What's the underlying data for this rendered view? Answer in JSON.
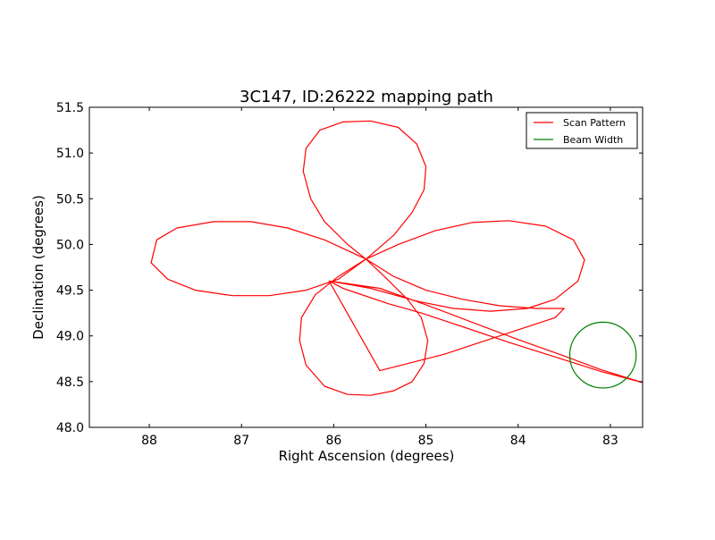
{
  "chart_data": {
    "type": "line",
    "title": "3C147, ID:26222 mapping path",
    "xlabel": "Right Ascension (degrees)",
    "ylabel": "Declination (degrees)",
    "xlim": [
      88.65,
      82.65
    ],
    "ylim": [
      48.0,
      51.5
    ],
    "x_axis_inverted": true,
    "xticks": [
      88,
      87,
      86,
      85,
      84,
      83
    ],
    "xtick_labels": [
      "88",
      "87",
      "86",
      "85",
      "84",
      "83"
    ],
    "yticks": [
      48.0,
      48.5,
      49.0,
      49.5,
      50.0,
      50.5,
      51.0,
      51.5
    ],
    "ytick_labels": [
      "48.0",
      "48.5",
      "49.0",
      "49.5",
      "50.0",
      "50.5",
      "51.0",
      "51.5"
    ],
    "grid": false,
    "legend": {
      "placement": "top-right"
    },
    "series": [
      {
        "name": "Scan Pattern",
        "color": "#ff0000",
        "points": [
          [
            82.65,
            48.49
          ],
          [
            83.1,
            48.63
          ],
          [
            83.5,
            48.78
          ],
          [
            84.0,
            48.96
          ],
          [
            84.5,
            49.15
          ],
          [
            85.0,
            49.34
          ],
          [
            85.5,
            49.52
          ],
          [
            86.05,
            49.6
          ],
          [
            85.6,
            49.52
          ],
          [
            85.1,
            49.38
          ],
          [
            84.7,
            49.3
          ],
          [
            84.3,
            49.27
          ],
          [
            83.9,
            49.3
          ],
          [
            83.6,
            49.4
          ],
          [
            83.35,
            49.6
          ],
          [
            83.28,
            49.83
          ],
          [
            83.4,
            50.05
          ],
          [
            83.7,
            50.2
          ],
          [
            84.1,
            50.26
          ],
          [
            84.5,
            50.24
          ],
          [
            84.9,
            50.15
          ],
          [
            85.3,
            50.0
          ],
          [
            85.65,
            49.84
          ],
          [
            85.95,
            49.65
          ],
          [
            86.2,
            49.45
          ],
          [
            86.35,
            49.2
          ],
          [
            86.37,
            48.95
          ],
          [
            86.3,
            48.68
          ],
          [
            86.1,
            48.45
          ],
          [
            85.85,
            48.36
          ],
          [
            85.6,
            48.35
          ],
          [
            85.35,
            48.4
          ],
          [
            85.15,
            48.5
          ],
          [
            85.02,
            48.7
          ],
          [
            84.98,
            48.95
          ],
          [
            85.05,
            49.2
          ],
          [
            85.2,
            49.4
          ],
          [
            85.45,
            49.65
          ],
          [
            85.65,
            49.84
          ],
          [
            85.85,
            50.0
          ],
          [
            86.1,
            50.25
          ],
          [
            86.25,
            50.5
          ],
          [
            86.33,
            50.8
          ],
          [
            86.3,
            51.05
          ],
          [
            86.15,
            51.25
          ],
          [
            85.9,
            51.34
          ],
          [
            85.6,
            51.35
          ],
          [
            85.3,
            51.28
          ],
          [
            85.1,
            51.1
          ],
          [
            85.0,
            50.85
          ],
          [
            85.02,
            50.6
          ],
          [
            85.15,
            50.35
          ],
          [
            85.35,
            50.1
          ],
          [
            85.65,
            49.84
          ],
          [
            85.95,
            49.62
          ],
          [
            86.3,
            49.5
          ],
          [
            86.7,
            49.44
          ],
          [
            87.1,
            49.44
          ],
          [
            87.5,
            49.5
          ],
          [
            87.8,
            49.62
          ],
          [
            87.98,
            49.8
          ],
          [
            87.92,
            50.05
          ],
          [
            87.7,
            50.18
          ],
          [
            87.3,
            50.25
          ],
          [
            86.9,
            50.25
          ],
          [
            86.5,
            50.18
          ],
          [
            86.1,
            50.05
          ],
          [
            85.65,
            49.84
          ],
          [
            85.35,
            49.65
          ],
          [
            85.0,
            49.5
          ],
          [
            84.6,
            49.4
          ],
          [
            84.2,
            49.33
          ],
          [
            83.8,
            49.3
          ],
          [
            83.5,
            49.3
          ],
          [
            83.6,
            49.2
          ],
          [
            84.2,
            49.0
          ],
          [
            84.8,
            48.8
          ],
          [
            85.5,
            48.62
          ],
          [
            86.05,
            49.6
          ],
          [
            85.9,
            49.52
          ],
          [
            85.4,
            49.35
          ],
          [
            85.05,
            49.25
          ],
          [
            84.6,
            49.1
          ],
          [
            84.1,
            48.93
          ],
          [
            83.6,
            48.77
          ],
          [
            83.1,
            48.61
          ],
          [
            82.65,
            48.49
          ]
        ]
      },
      {
        "name": "Beam Width",
        "color": "#008000",
        "circle": {
          "center": [
            83.08,
            48.79
          ],
          "radius": 0.36
        }
      }
    ]
  }
}
